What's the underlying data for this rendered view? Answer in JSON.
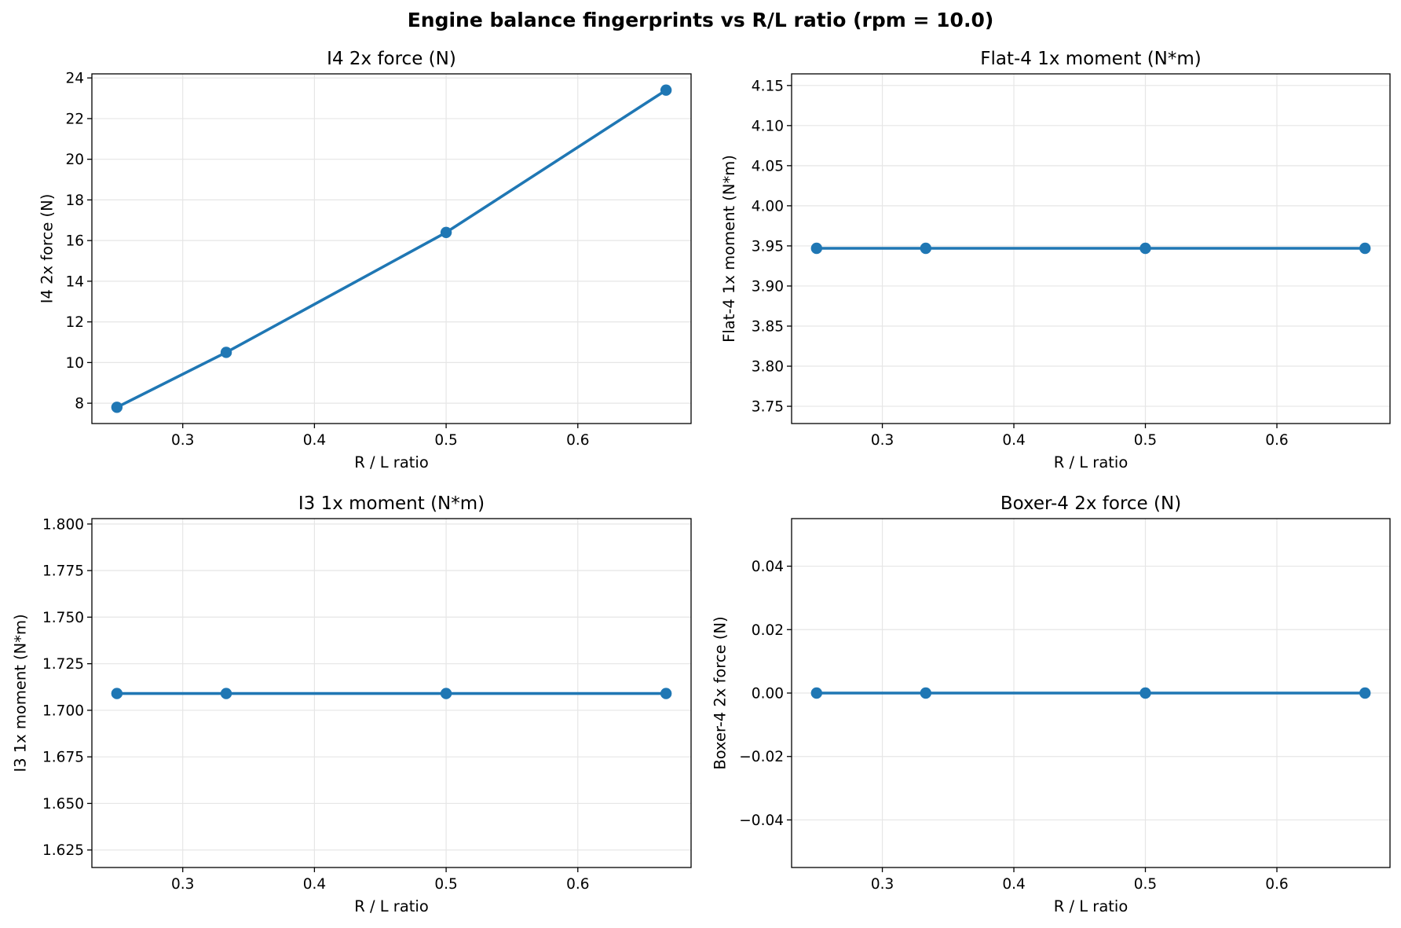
{
  "figure": {
    "suptitle": "Engine balance fingerprints vs R/L ratio (rpm = 10.0)"
  },
  "colors": {
    "series": "#1f77b4",
    "grid": "#e6e6e6",
    "axes": "#000000"
  },
  "chart_data": [
    {
      "type": "line",
      "title": "I4 2x force (N)",
      "xlabel": "R / L ratio",
      "ylabel": "I4 2x force (N)",
      "xlim": [
        0.231,
        0.686
      ],
      "ylim": [
        7.0,
        24.2
      ],
      "xticks": [
        0.3,
        0.4,
        0.5,
        0.6
      ],
      "xtick_labels": [
        "0.3",
        "0.4",
        "0.5",
        "0.6"
      ],
      "yticks": [
        8,
        10,
        12,
        14,
        16,
        18,
        20,
        22,
        24
      ],
      "ytick_labels": [
        "8",
        "10",
        "12",
        "14",
        "16",
        "18",
        "20",
        "22",
        "24"
      ],
      "grid": true,
      "x": [
        0.25,
        0.333,
        0.5,
        0.667
      ],
      "series": [
        {
          "values": [
            7.8,
            10.5,
            16.4,
            23.4
          ],
          "marker": "circle"
        }
      ]
    },
    {
      "type": "line",
      "title": "Flat-4 1x moment (N*m)",
      "xlabel": "R / L ratio",
      "ylabel": "Flat-4 1x moment (N*m)",
      "xlim": [
        0.231,
        0.686
      ],
      "ylim": [
        3.7285,
        4.1645
      ],
      "xticks": [
        0.3,
        0.4,
        0.5,
        0.6
      ],
      "xtick_labels": [
        "0.3",
        "0.4",
        "0.5",
        "0.6"
      ],
      "yticks": [
        3.75,
        3.8,
        3.85,
        3.9,
        3.95,
        4.0,
        4.05,
        4.1,
        4.15
      ],
      "ytick_labels": [
        "3.75",
        "3.80",
        "3.85",
        "3.90",
        "3.95",
        "4.00",
        "4.05",
        "4.10",
        "4.15"
      ],
      "grid": true,
      "x": [
        0.25,
        0.333,
        0.5,
        0.667
      ],
      "series": [
        {
          "values": [
            3.947,
            3.947,
            3.947,
            3.947
          ],
          "marker": "circle"
        }
      ]
    },
    {
      "type": "line",
      "title": "I3 1x moment (N*m)",
      "xlabel": "R / L ratio",
      "ylabel": "I3 1x moment (N*m)",
      "xlim": [
        0.231,
        0.686
      ],
      "ylim": [
        1.6156,
        1.8029
      ],
      "xticks": [
        0.3,
        0.4,
        0.5,
        0.6
      ],
      "xtick_labels": [
        "0.3",
        "0.4",
        "0.5",
        "0.6"
      ],
      "yticks": [
        1.625,
        1.65,
        1.675,
        1.7,
        1.725,
        1.75,
        1.775,
        1.8
      ],
      "ytick_labels": [
        "1.625",
        "1.650",
        "1.675",
        "1.700",
        "1.725",
        "1.750",
        "1.775",
        "1.800"
      ],
      "grid": true,
      "x": [
        0.25,
        0.333,
        0.5,
        0.667
      ],
      "series": [
        {
          "values": [
            1.709,
            1.709,
            1.709,
            1.709
          ],
          "marker": "circle"
        }
      ]
    },
    {
      "type": "line",
      "title": "Boxer-4 2x force (N)",
      "xlabel": "R / L ratio",
      "ylabel": "Boxer-4 2x force (N)",
      "xlim": [
        0.231,
        0.686
      ],
      "ylim": [
        -0.055,
        0.055
      ],
      "xticks": [
        0.3,
        0.4,
        0.5,
        0.6
      ],
      "xtick_labels": [
        "0.3",
        "0.4",
        "0.5",
        "0.6"
      ],
      "yticks": [
        -0.04,
        -0.02,
        0.0,
        0.02,
        0.04
      ],
      "ytick_labels": [
        "−0.04",
        "−0.02",
        "0.00",
        "0.02",
        "0.04"
      ],
      "grid": true,
      "x": [
        0.25,
        0.333,
        0.5,
        0.667
      ],
      "series": [
        {
          "values": [
            0.0,
            0.0,
            0.0,
            0.0
          ],
          "marker": "circle"
        }
      ]
    }
  ]
}
